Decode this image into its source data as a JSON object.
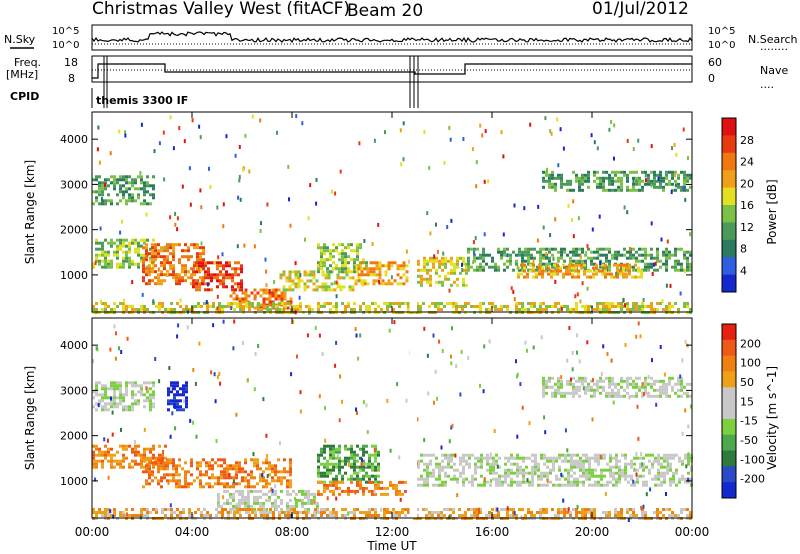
{
  "header": {
    "title": "Christmas Valley West (fitACF)",
    "beam": "Beam 20",
    "date": "01/Jul/2012"
  },
  "status_panel": {
    "nsky_label": "N.Sky",
    "nsearch_label": "N.Search",
    "nsearch_dots": "........",
    "freq_label": "Freq.",
    "freq_unit": "[MHz]",
    "nave_label": "Nave",
    "nave_dots": "....",
    "cpid_label": "CPID",
    "noise_ticks": [
      "10^5",
      "10^0"
    ],
    "noise_ticks_right": [
      "10^5",
      "10^0"
    ],
    "freq_ticks": [
      "18",
      "8"
    ],
    "nave_ticks": [
      "60",
      "0"
    ],
    "cpid_text": "themis 3300 IF"
  },
  "chart_data": [
    {
      "type": "heatmap",
      "title": "",
      "xlabel": "",
      "ylabel": "Slant Range [km]",
      "xlim_hours": [
        0,
        24
      ],
      "ylim_km": [
        180,
        4600
      ],
      "x_tick_labels": [
        "00:00",
        "04:00",
        "08:00",
        "12:00",
        "16:00",
        "20:00",
        "00:00"
      ],
      "y_tick_labels": [
        "1000",
        "2000",
        "3000",
        "4000"
      ],
      "y_ticks_km": [
        1000,
        2000,
        3000,
        4000
      ],
      "colorbar": {
        "label": "Power [dB]",
        "ticks": [
          "4",
          "8",
          "12",
          "16",
          "20",
          "24",
          "28"
        ],
        "colors": [
          "#1528d0",
          "#2f5fe0",
          "#2c7a5f",
          "#4c9a5a",
          "#7cc048",
          "#e2e020",
          "#f0a018",
          "#f07810",
          "#e83a10",
          "#e01010"
        ]
      },
      "data_gap_hours": [
        12.7,
        13.0
      ],
      "echo_regions": [
        {
          "t0": 0.0,
          "t1": 2.5,
          "r0": 2600,
          "r1": 3200,
          "level": 3
        },
        {
          "t0": 0.0,
          "t1": 2.5,
          "r0": 1200,
          "r1": 1800,
          "level": 4
        },
        {
          "t0": 2.0,
          "t1": 4.5,
          "r0": 800,
          "r1": 1700,
          "level": 7
        },
        {
          "t0": 4.0,
          "t1": 6.0,
          "r0": 700,
          "r1": 1300,
          "level": 8
        },
        {
          "t0": 5.5,
          "t1": 8.0,
          "r0": 250,
          "r1": 700,
          "level": 7
        },
        {
          "t0": 7.5,
          "t1": 10.5,
          "r0": 700,
          "r1": 1100,
          "level": 5
        },
        {
          "t0": 9.0,
          "t1": 11.0,
          "r0": 1100,
          "r1": 1700,
          "level": 4
        },
        {
          "t0": 10.5,
          "t1": 12.6,
          "r0": 800,
          "r1": 1300,
          "level": 6
        },
        {
          "t0": 13.0,
          "t1": 15.0,
          "r0": 800,
          "r1": 1400,
          "level": 5
        },
        {
          "t0": 15.0,
          "t1": 24.0,
          "r0": 1100,
          "r1": 1600,
          "level": 3
        },
        {
          "t0": 17.0,
          "t1": 22.0,
          "r0": 950,
          "r1": 1250,
          "level": 6
        },
        {
          "t0": 18.0,
          "t1": 24.0,
          "r0": 2900,
          "r1": 3300,
          "level": 3
        },
        {
          "t0": 0.0,
          "t1": 24.0,
          "r0": 200,
          "r1": 400,
          "level": 5
        }
      ]
    },
    {
      "type": "heatmap",
      "title": "",
      "xlabel": "Time UT",
      "ylabel": "Slant Range [km]",
      "xlim_hours": [
        0,
        24
      ],
      "ylim_km": [
        180,
        4600
      ],
      "x_tick_labels": [
        "00:00",
        "04:00",
        "08:00",
        "12:00",
        "16:00",
        "20:00",
        "00:00"
      ],
      "y_tick_labels": [
        "1000",
        "2000",
        "3000",
        "4000"
      ],
      "y_ticks_km": [
        1000,
        2000,
        3000,
        4000
      ],
      "colorbar": {
        "label": "Velocity [m s^-1]",
        "ticks": [
          "200",
          "100",
          "50",
          "15",
          "-15",
          "-50",
          "-100",
          "-200"
        ],
        "colors": [
          "#1528d0",
          "#2a4ac8",
          "#2e7a3a",
          "#4ca84a",
          "#7cd040",
          "#c8c8c8",
          "#c8c8c8",
          "#f0a018",
          "#f08010",
          "#f05818",
          "#e82010"
        ]
      },
      "data_gap_hours": [
        12.7,
        13.0
      ],
      "echo_regions": [
        {
          "t0": 0.0,
          "t1": 2.5,
          "r0": 2600,
          "r1": 3200,
          "level": 5
        },
        {
          "t0": 0.0,
          "t1": 3.0,
          "r0": 1300,
          "r1": 1800,
          "level": 8
        },
        {
          "t0": 3.0,
          "t1": 3.8,
          "r0": 2600,
          "r1": 3200,
          "level": 0
        },
        {
          "t0": 2.0,
          "t1": 8.0,
          "r0": 900,
          "r1": 1500,
          "level": 8
        },
        {
          "t0": 5.0,
          "t1": 9.0,
          "r0": 300,
          "r1": 800,
          "level": 5
        },
        {
          "t0": 9.0,
          "t1": 11.5,
          "r0": 1000,
          "r1": 1800,
          "level": 3
        },
        {
          "t0": 9.0,
          "t1": 12.6,
          "r0": 700,
          "r1": 1000,
          "level": 8
        },
        {
          "t0": 13.0,
          "t1": 24.0,
          "r0": 900,
          "r1": 1600,
          "level": 5
        },
        {
          "t0": 18.0,
          "t1": 24.0,
          "r0": 2900,
          "r1": 3300,
          "level": 5
        },
        {
          "t0": 0.0,
          "t1": 24.0,
          "r0": 200,
          "r1": 400,
          "level": 7
        }
      ]
    }
  ]
}
